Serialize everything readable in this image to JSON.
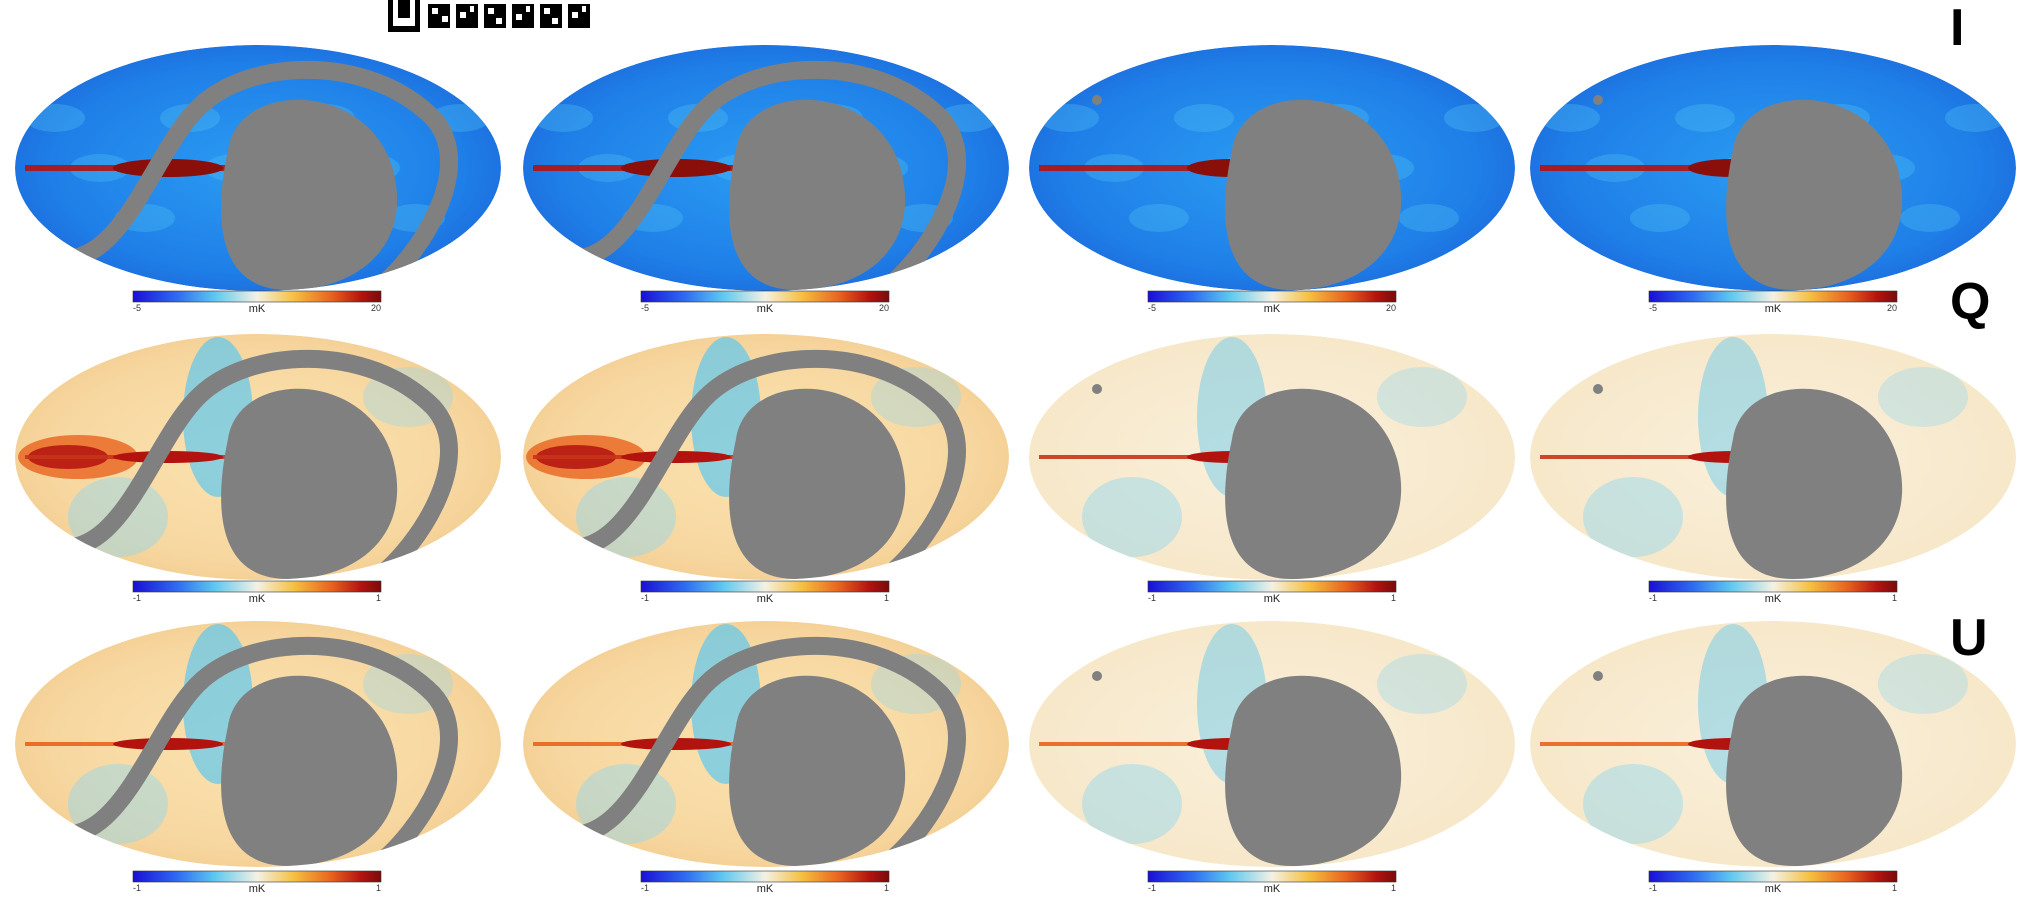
{
  "figure": {
    "rows": [
      {
        "stokes_label": "I",
        "colorbar": {
          "min_label": "-5",
          "max_label": "20",
          "unit": "mK"
        },
        "palette": "jet-blue-dominant"
      },
      {
        "stokes_label": "Q",
        "colorbar": {
          "min_label": "-1",
          "max_label": "1",
          "unit": "mK"
        },
        "palette": "diverging-orange"
      },
      {
        "stokes_label": "U",
        "colorbar": {
          "min_label": "-1",
          "max_label": "1",
          "unit": "mK"
        },
        "palette": "diverging-orange"
      }
    ],
    "columns": 4,
    "colors": {
      "mask_gray": "#808080",
      "background": "#ffffff",
      "colorbar_stops": [
        "#1a0fd6",
        "#2f6cf2",
        "#5ec8f0",
        "#f4f1e4",
        "#f5c040",
        "#e8631e",
        "#b3130f",
        "#7a0b0b"
      ]
    },
    "decorations": {
      "qr_code_fragment": "qr-code-fragment"
    }
  }
}
